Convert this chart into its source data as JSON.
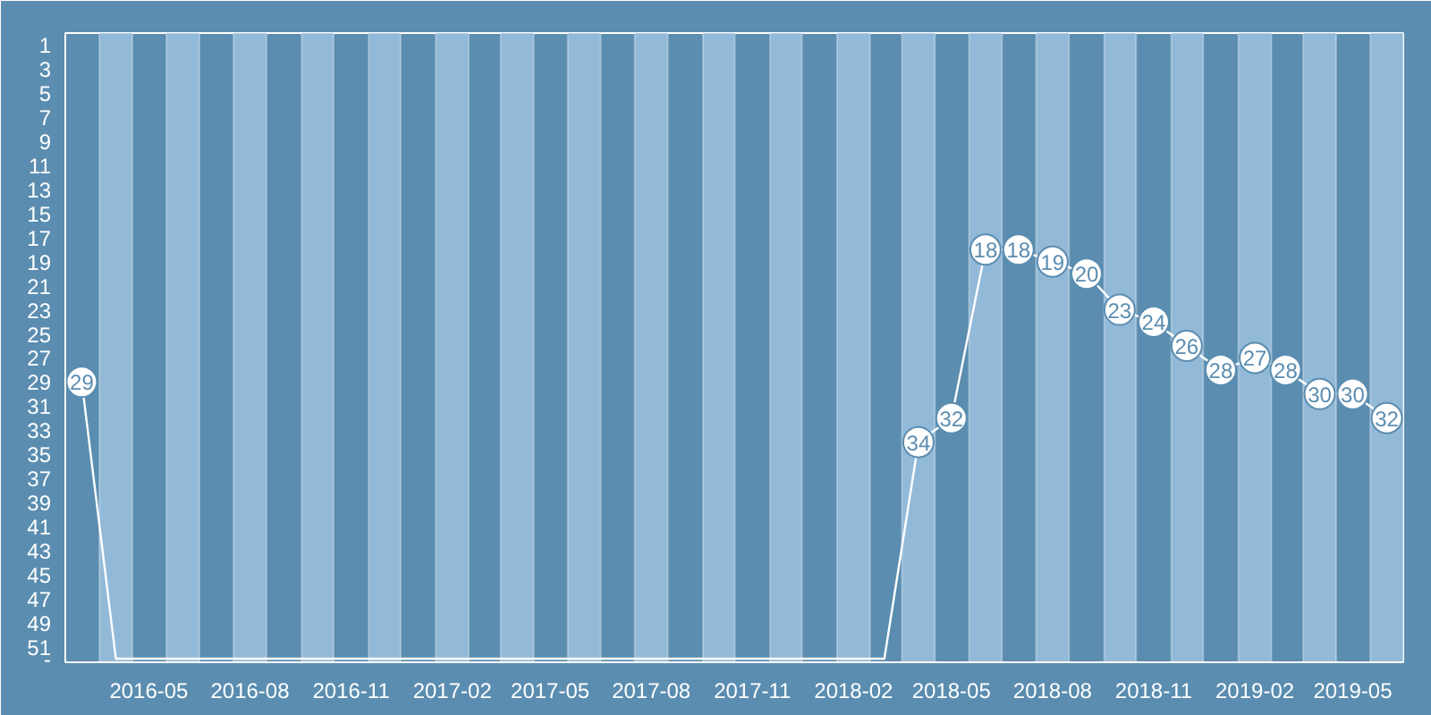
{
  "chart_data": {
    "type": "line",
    "x": [
      "2016-03",
      "2016-04",
      "2016-05",
      "2016-06",
      "2016-07",
      "2016-08",
      "2016-09",
      "2016-10",
      "2016-11",
      "2016-12",
      "2017-01",
      "2017-02",
      "2017-03",
      "2017-04",
      "2017-05",
      "2017-06",
      "2017-07",
      "2017-08",
      "2017-09",
      "2017-10",
      "2017-11",
      "2017-12",
      "2018-01",
      "2018-02",
      "2018-03",
      "2018-04",
      "2018-05",
      "2018-06",
      "2018-07",
      "2018-08",
      "2018-09",
      "2018-10",
      "2018-11",
      "2018-12",
      "2019-01",
      "2019-02",
      "2019-03",
      "2019-04",
      "2019-05",
      "2019-06"
    ],
    "series": [
      {
        "color": "#ffffff",
        "values": [
          29,
          52,
          52,
          52,
          52,
          52,
          52,
          52,
          52,
          52,
          52,
          52,
          52,
          52,
          52,
          52,
          52,
          52,
          52,
          52,
          52,
          52,
          52,
          52,
          52,
          34,
          32,
          18,
          18,
          19,
          20,
          23,
          24,
          26,
          28,
          27,
          28,
          30,
          30,
          32
        ],
        "value_labels": [
          "29",
          null,
          null,
          null,
          null,
          null,
          null,
          null,
          null,
          null,
          null,
          null,
          null,
          null,
          null,
          null,
          null,
          null,
          null,
          null,
          null,
          null,
          null,
          null,
          null,
          "34",
          "32",
          "18",
          "18",
          "19",
          "20",
          "23",
          "24",
          "26",
          "28",
          "27",
          "28",
          "30",
          "30",
          "32"
        ]
      }
    ],
    "xlim": [
      "2016-02-15",
      "2019-06-16"
    ],
    "xticks": [
      "2016-05",
      "2016-08",
      "2016-11",
      "2017-02",
      "2017-05",
      "2017-08",
      "2017-11",
      "2018-02",
      "2018-05",
      "2018-08",
      "2018-11",
      "2019-02",
      "2019-05"
    ],
    "ylim": [
      52.3,
      0
    ],
    "yticks": [
      1,
      3,
      5,
      7,
      9,
      11,
      13,
      15,
      17,
      19,
      21,
      23,
      25,
      27,
      29,
      31,
      33,
      35,
      37,
      39,
      41,
      43,
      45,
      47,
      49,
      51,
      {
        "value": 52,
        "label": "-"
      }
    ],
    "bands": [
      {
        "axis": "x",
        "from": "2016-03-17",
        "to": "2016-04-16",
        "color": "#93b9d8"
      },
      {
        "axis": "x",
        "from": "2016-05-17",
        "to": "2016-06-16",
        "color": "#93b9d8"
      },
      {
        "axis": "x",
        "from": "2016-07-17",
        "to": "2016-08-16",
        "color": "#93b9d8"
      },
      {
        "axis": "x",
        "from": "2016-09-17",
        "to": "2016-10-16",
        "color": "#93b9d8"
      },
      {
        "axis": "x",
        "from": "2016-11-17",
        "to": "2016-12-16",
        "color": "#93b9d8"
      },
      {
        "axis": "x",
        "from": "2017-01-17",
        "to": "2017-02-16",
        "color": "#93b9d8"
      },
      {
        "axis": "x",
        "from": "2017-03-17",
        "to": "2017-04-16",
        "color": "#93b9d8"
      },
      {
        "axis": "x",
        "from": "2017-05-17",
        "to": "2017-06-16",
        "color": "#93b9d8"
      },
      {
        "axis": "x",
        "from": "2017-07-17",
        "to": "2017-08-16",
        "color": "#93b9d8"
      },
      {
        "axis": "x",
        "from": "2017-09-17",
        "to": "2017-10-16",
        "color": "#93b9d8"
      },
      {
        "axis": "x",
        "from": "2017-11-17",
        "to": "2017-12-16",
        "color": "#93b9d8"
      },
      {
        "axis": "x",
        "from": "2018-01-17",
        "to": "2018-02-16",
        "color": "#93b9d8"
      },
      {
        "axis": "x",
        "from": "2018-03-17",
        "to": "2018-04-16",
        "color": "#93b9d8"
      },
      {
        "axis": "x",
        "from": "2018-05-17",
        "to": "2018-06-16",
        "color": "#93b9d8"
      },
      {
        "axis": "x",
        "from": "2018-07-17",
        "to": "2018-08-16",
        "color": "#93b9d8"
      },
      {
        "axis": "x",
        "from": "2018-09-17",
        "to": "2018-10-16",
        "color": "#93b9d8"
      },
      {
        "axis": "x",
        "from": "2018-11-17",
        "to": "2018-12-16",
        "color": "#93b9d8"
      },
      {
        "axis": "x",
        "from": "2019-01-17",
        "to": "2019-02-16",
        "color": "#93b9d8"
      },
      {
        "axis": "x",
        "from": "2019-03-17",
        "to": "2019-04-16",
        "color": "#93b9d8"
      },
      {
        "axis": "x",
        "from": "2019-05-17",
        "to": "2019-06-16",
        "color": "#93b9d8"
      }
    ],
    "line_style": "solid",
    "grid": false
  }
}
